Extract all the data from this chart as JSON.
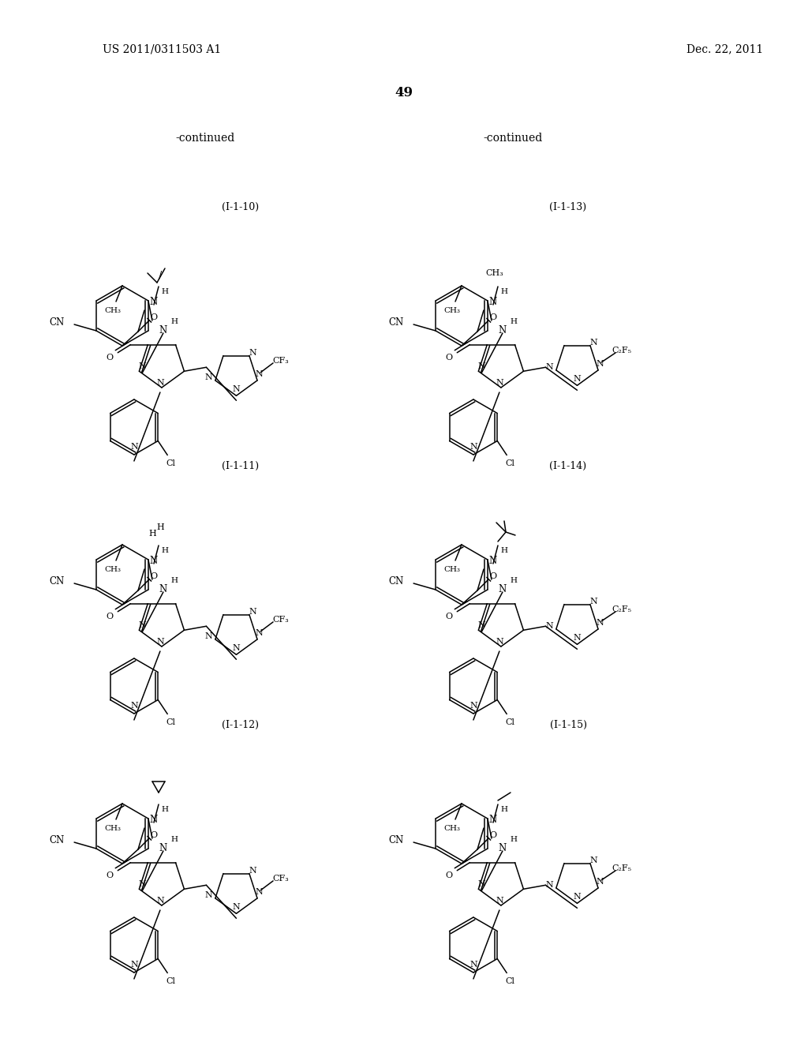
{
  "page_number": "49",
  "patent_number": "US 2011/0311503 A1",
  "patent_date": "Dec. 22, 2011",
  "continued_left": "-continued",
  "continued_right": "-continued",
  "background_color": "#ffffff",
  "text_color": "#000000",
  "line_color": "#000000",
  "compounds": [
    {
      "label": "(I-1-10)",
      "position": "top-left"
    },
    {
      "label": "(I-1-13)",
      "position": "top-right"
    },
    {
      "label": "(I-1-11)",
      "position": "mid-left"
    },
    {
      "label": "(I-1-14)",
      "position": "mid-right"
    },
    {
      "label": "(I-1-12)",
      "position": "bot-left"
    },
    {
      "label": "(I-1-15)",
      "position": "bot-right"
    }
  ]
}
